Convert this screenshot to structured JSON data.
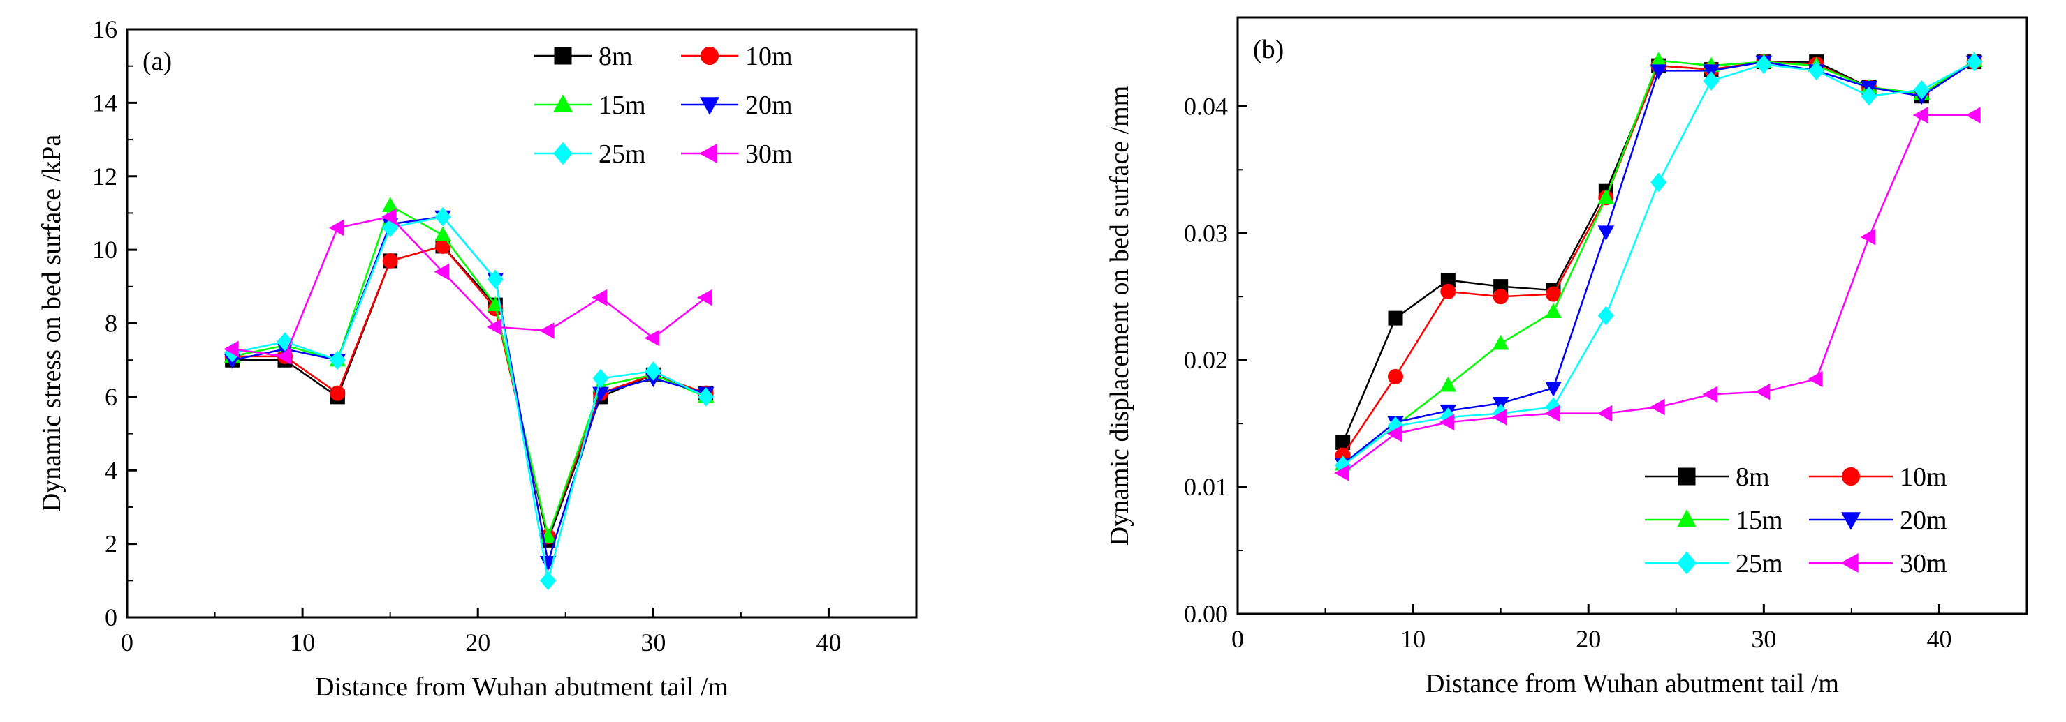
{
  "chart_data": [
    {
      "type": "line",
      "panel": "(a)",
      "xlabel": "Distance from Wuhan abutment tail /m",
      "ylabel": "Dynamic stress on bed surface /kPa",
      "xlim": [
        0,
        45
      ],
      "ylim": [
        0,
        16
      ],
      "xticks": [
        0,
        10,
        20,
        30,
        40
      ],
      "xtick_labels": [
        "0",
        "10",
        "20",
        "30",
        "40"
      ],
      "yticks": [
        0,
        2,
        4,
        6,
        8,
        10,
        12,
        14,
        16
      ],
      "ytick_labels": [
        "0",
        "2",
        "4",
        "6",
        "8",
        "10",
        "12",
        "14",
        "16"
      ],
      "legend_position": "top-right",
      "series": [
        {
          "name": "8m",
          "color": "#000000",
          "marker": "square",
          "x": [
            6,
            9,
            12,
            15,
            18,
            21,
            24,
            27,
            30,
            33
          ],
          "values": [
            7.0,
            7.0,
            6.0,
            9.7,
            10.1,
            8.5,
            2.1,
            6.0,
            6.6,
            6.1
          ]
        },
        {
          "name": "10m",
          "color": "#ff0000",
          "marker": "circle",
          "x": [
            6,
            9,
            12,
            15,
            18,
            21,
            24,
            27,
            30,
            33
          ],
          "values": [
            7.1,
            7.1,
            6.1,
            9.7,
            10.1,
            8.4,
            2.2,
            6.1,
            6.6,
            6.1
          ]
        },
        {
          "name": "15m",
          "color": "#00ff00",
          "marker": "triangle-up",
          "x": [
            6,
            9,
            12,
            15,
            18,
            21,
            24,
            27,
            30,
            33
          ],
          "values": [
            7.1,
            7.4,
            7.0,
            11.2,
            10.4,
            8.5,
            2.2,
            6.3,
            6.6,
            6.0
          ]
        },
        {
          "name": "20m",
          "color": "#0000ff",
          "marker": "triangle-down",
          "x": [
            6,
            9,
            12,
            15,
            18,
            21,
            24,
            27,
            30,
            33
          ],
          "values": [
            7.0,
            7.3,
            7.0,
            10.7,
            10.9,
            9.2,
            1.5,
            6.1,
            6.5,
            6.1
          ]
        },
        {
          "name": "25m",
          "color": "#00ffff",
          "marker": "diamond",
          "x": [
            6,
            9,
            12,
            15,
            18,
            21,
            24,
            27,
            30,
            33
          ],
          "values": [
            7.2,
            7.5,
            7.0,
            10.6,
            10.9,
            9.2,
            1.0,
            6.5,
            6.7,
            6.0
          ]
        },
        {
          "name": "30m",
          "color": "#ff00ff",
          "marker": "triangle-left",
          "x": [
            6,
            9,
            12,
            15,
            18,
            21,
            24,
            27,
            30,
            33
          ],
          "values": [
            7.3,
            7.1,
            10.6,
            10.9,
            9.4,
            7.9,
            7.8,
            8.7,
            7.6,
            8.7
          ]
        }
      ]
    },
    {
      "type": "line",
      "panel": "(b)",
      "xlabel": "Distance from Wuhan abutment tail /m",
      "ylabel": "Dynamic displacement on bed surface /mm",
      "xlim": [
        0,
        45
      ],
      "ylim": [
        0,
        0.047
      ],
      "xticks": [
        0,
        10,
        20,
        30,
        40
      ],
      "xtick_labels": [
        "0",
        "10",
        "20",
        "30",
        "40"
      ],
      "yticks": [
        0,
        0.01,
        0.02,
        0.03,
        0.04
      ],
      "ytick_labels": [
        "0.00",
        "0.01",
        "0.02",
        "0.03",
        "0.04"
      ],
      "legend_position": "bottom-right",
      "series": [
        {
          "name": "8m",
          "color": "#000000",
          "marker": "square",
          "x": [
            6,
            9,
            12,
            15,
            18,
            21,
            24,
            27,
            30,
            33,
            36,
            39,
            42
          ],
          "values": [
            0.0135,
            0.0233,
            0.0263,
            0.0258,
            0.0255,
            0.0333,
            0.0432,
            0.0429,
            0.0435,
            0.0435,
            0.0415,
            0.0408,
            0.0435
          ]
        },
        {
          "name": "10m",
          "color": "#ff0000",
          "marker": "circle",
          "x": [
            6,
            9,
            12,
            15,
            18,
            21,
            24,
            27,
            30,
            33,
            36,
            39,
            42
          ],
          "values": [
            0.0125,
            0.0187,
            0.0254,
            0.025,
            0.0252,
            0.0328,
            0.0432,
            0.0429,
            0.0435,
            0.0433,
            0.0415,
            0.041,
            0.0435
          ]
        },
        {
          "name": "15m",
          "color": "#00ff00",
          "marker": "triangle-up",
          "x": [
            6,
            9,
            12,
            15,
            18,
            21,
            24,
            27,
            30,
            33,
            36,
            39,
            42
          ],
          "values": [
            0.0118,
            0.0148,
            0.018,
            0.0213,
            0.0238,
            0.0328,
            0.0436,
            0.0432,
            0.0435,
            0.0432,
            0.0415,
            0.041,
            0.0436
          ]
        },
        {
          "name": "20m",
          "color": "#0000ff",
          "marker": "triangle-down",
          "x": [
            6,
            9,
            12,
            15,
            18,
            21,
            24,
            27,
            30,
            33,
            36,
            39,
            42
          ],
          "values": [
            0.0118,
            0.0151,
            0.016,
            0.0166,
            0.0178,
            0.0301,
            0.0428,
            0.0428,
            0.0435,
            0.0428,
            0.0415,
            0.0408,
            0.0435
          ]
        },
        {
          "name": "25m",
          "color": "#00ffff",
          "marker": "diamond",
          "x": [
            6,
            9,
            12,
            15,
            18,
            21,
            24,
            27,
            30,
            33,
            36,
            39,
            42
          ],
          "values": [
            0.0117,
            0.0148,
            0.0155,
            0.0158,
            0.0163,
            0.0235,
            0.034,
            0.042,
            0.0433,
            0.0428,
            0.0408,
            0.0413,
            0.0435
          ]
        },
        {
          "name": "30m",
          "color": "#ff00ff",
          "marker": "triangle-left",
          "x": [
            6,
            9,
            12,
            15,
            18,
            21,
            24,
            27,
            30,
            33,
            36,
            39,
            42
          ],
          "values": [
            0.0111,
            0.0142,
            0.0151,
            0.0155,
            0.0158,
            0.0158,
            0.0163,
            0.0173,
            0.0175,
            0.0185,
            0.0297,
            0.0393,
            0.0393
          ]
        }
      ]
    }
  ]
}
